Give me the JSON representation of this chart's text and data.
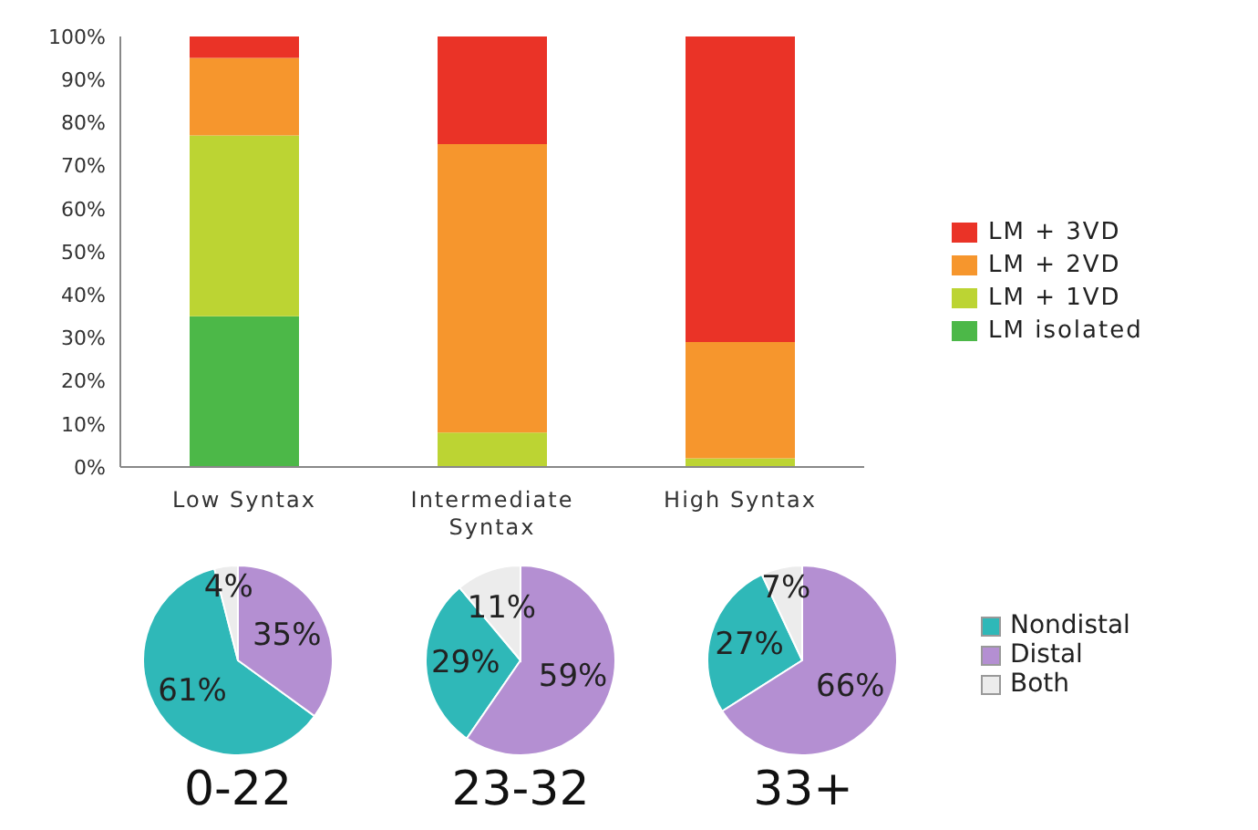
{
  "chart_data": [
    {
      "type": "bar",
      "stacked": true,
      "categories": [
        "Low Syntax",
        "Intermediate Syntax",
        "High Syntax"
      ],
      "series": [
        {
          "name": "LM isolated",
          "color": "#4cb848",
          "values": [
            35,
            0,
            0
          ]
        },
        {
          "name": "LM + 1VD",
          "color": "#bcd433",
          "values": [
            42,
            8,
            2
          ]
        },
        {
          "name": "LM + 2VD",
          "color": "#f6962d",
          "values": [
            18,
            67,
            27
          ]
        },
        {
          "name": "LM + 3VD",
          "color": "#ea3327",
          "values": [
            5,
            25,
            71
          ]
        }
      ],
      "ylim": [
        0,
        100
      ],
      "yticks": [
        {
          "value": 0,
          "label": "0%"
        },
        {
          "value": 10,
          "label": "10%"
        },
        {
          "value": 20,
          "label": "20%"
        },
        {
          "value": 30,
          "label": "30%"
        },
        {
          "value": 40,
          "label": "40%"
        },
        {
          "value": 50,
          "label": "50%"
        },
        {
          "value": 60,
          "label": "60%"
        },
        {
          "value": 70,
          "label": "70%"
        },
        {
          "value": 80,
          "label": "80%"
        },
        {
          "value": 90,
          "label": "90%"
        },
        {
          "value": 100,
          "label": "100%"
        }
      ],
      "grid": false,
      "legend": "right"
    },
    {
      "type": "pie",
      "title": "0-22",
      "categories": [
        null,
        null,
        null
      ],
      "values": [
        61,
        35,
        4
      ],
      "colors": [
        "#2fb8b8",
        "#b48fd2",
        "#ececec"
      ],
      "value_labels": [
        "61%",
        "35%",
        "4%"
      ],
      "legend": false
    },
    {
      "type": "pie",
      "title": "23-32",
      "categories": [
        null,
        null,
        null
      ],
      "values": [
        29,
        59,
        11
      ],
      "colors": [
        "#2fb8b8",
        "#b48fd2",
        "#ececec"
      ],
      "value_labels": [
        "29%",
        "59%",
        "11%"
      ],
      "legend": false
    },
    {
      "type": "pie",
      "title": "33+",
      "categories": [
        "Nondistal",
        "Distal",
        "Both"
      ],
      "values": [
        27,
        66,
        7
      ],
      "colors": [
        "#2fb8b8",
        "#b48fd2",
        "#ececec"
      ],
      "value_labels": [
        "27%",
        "66%",
        "7%"
      ],
      "legend": "right"
    }
  ]
}
